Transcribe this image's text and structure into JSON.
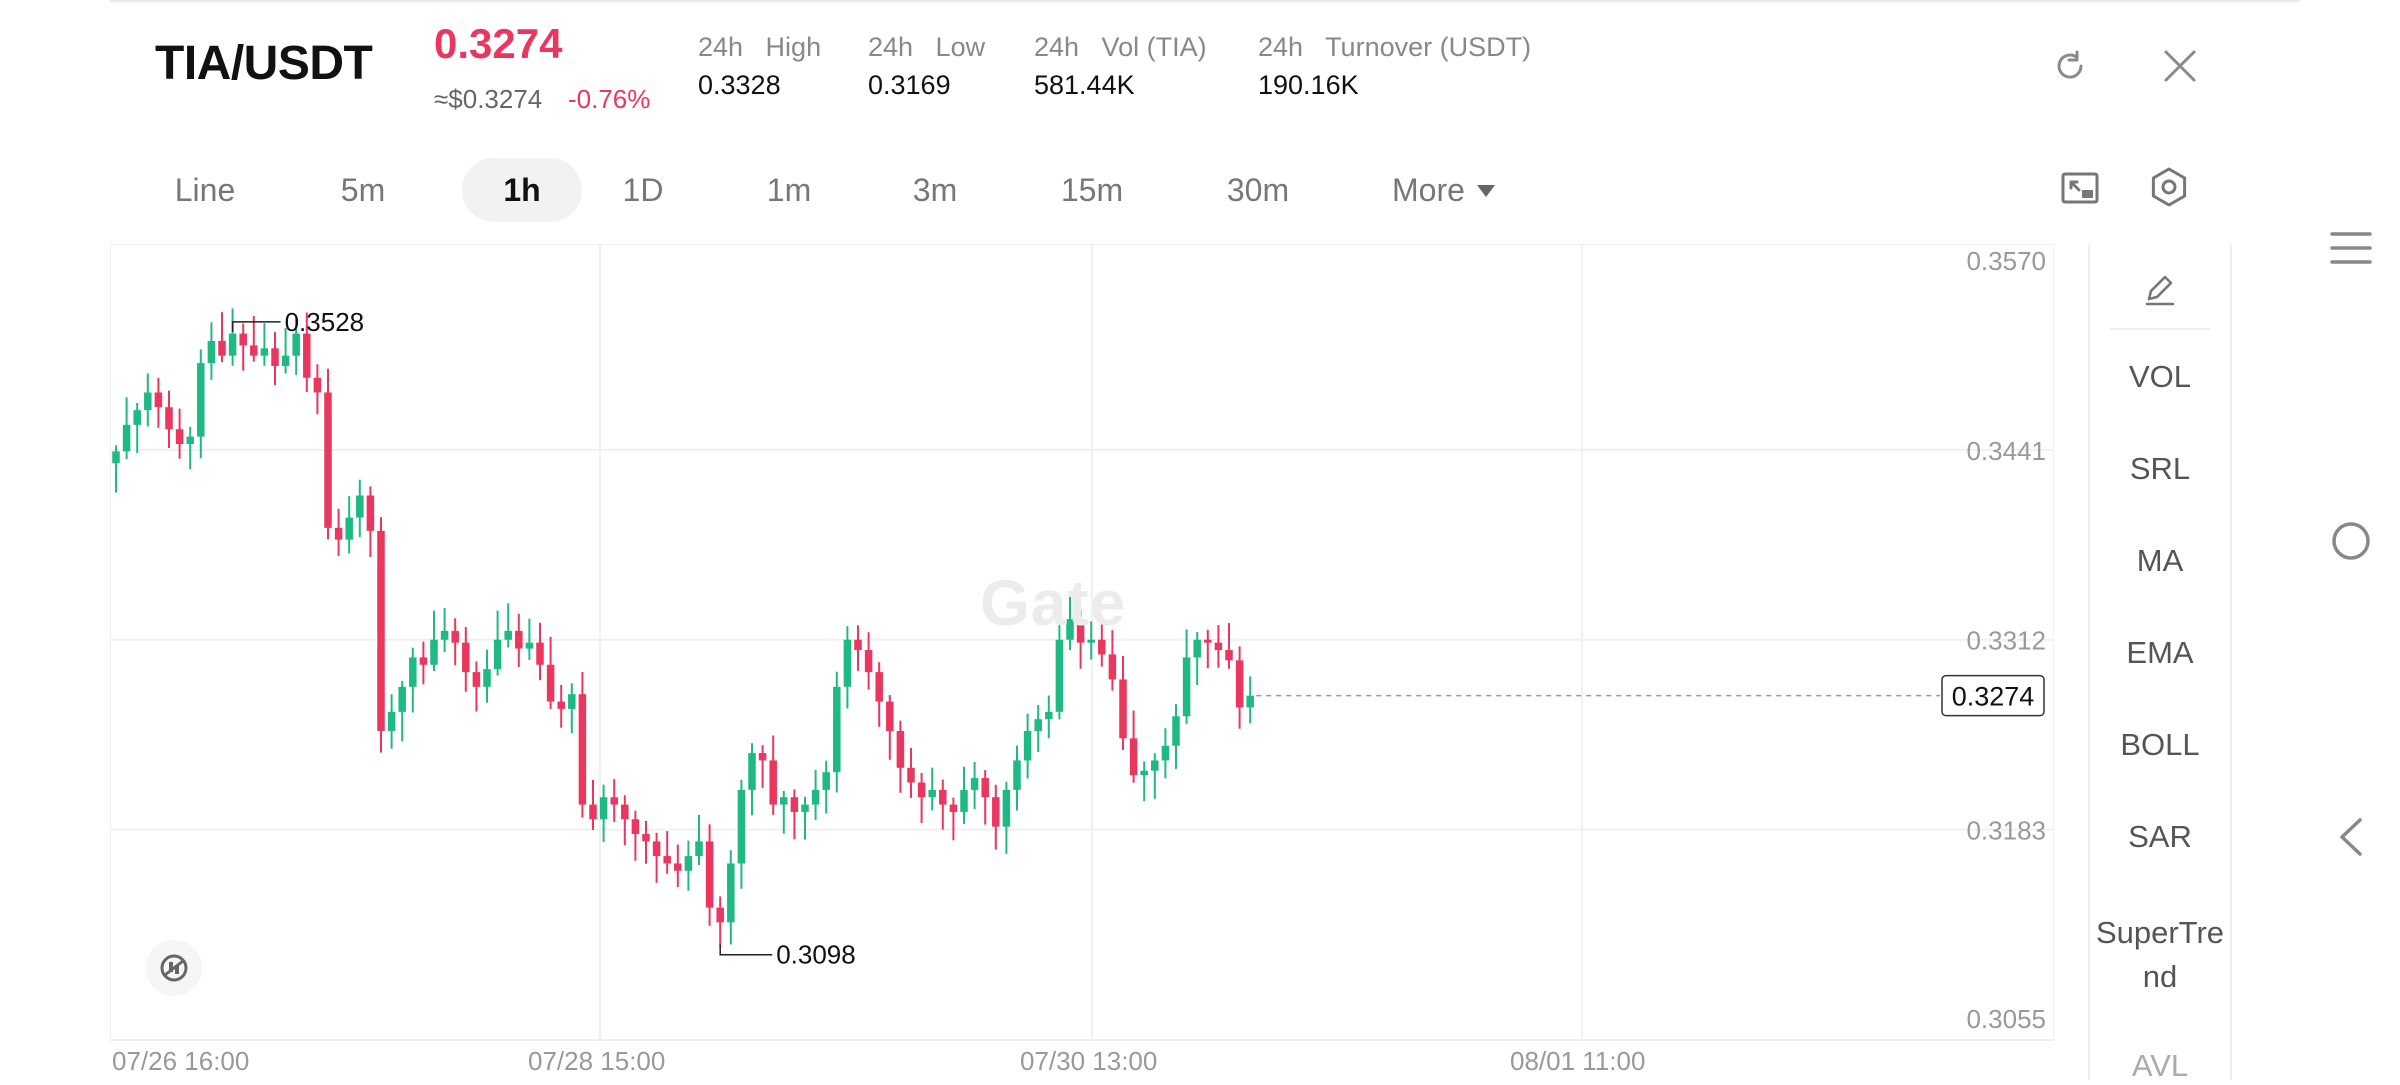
{
  "header": {
    "pair": "TIA/USDT",
    "last_price": "0.3274",
    "usd_approx": "≈$0.3274",
    "change_pct": "-0.76%",
    "stats": [
      {
        "label": "24h   High",
        "value": "0.3328"
      },
      {
        "label": "24h   Low",
        "value": "0.3169"
      },
      {
        "label": "24h   Vol (TIA)",
        "value": "581.44K"
      },
      {
        "label": "24h   Turnover (USDT)",
        "value": "190.16K"
      }
    ],
    "refresh_icon": "refresh-icon",
    "close_icon": "close-icon"
  },
  "intervals": {
    "tabs": [
      "Line",
      "5m",
      "1h",
      "1D",
      "1m",
      "3m",
      "15m",
      "30m"
    ],
    "active": "1h",
    "more_label": "More"
  },
  "toolbar": {
    "landscape_icon": "fullscreen-icon",
    "settings_icon": "settings-icon"
  },
  "indicators": {
    "draw_icon": "pencil-icon",
    "items": [
      "VOL",
      "SRL",
      "MA",
      "EMA",
      "BOLL",
      "SAR",
      "SuperTrend",
      "AVL"
    ]
  },
  "colors": {
    "up": "#1fba84",
    "down": "#e9375f",
    "grid": "#f0f0f0",
    "axis_text": "#999999"
  },
  "watermark": "Gate",
  "chart_data": {
    "type": "candlestick",
    "interval": "1h",
    "y_axis": {
      "ticks": [
        0.357,
        0.3441,
        0.3312,
        0.3183,
        0.3055
      ],
      "range": [
        0.3055,
        0.357
      ]
    },
    "x_axis": {
      "ticks": [
        "07/26 16:00",
        "07/28 15:00",
        "07/30 13:00",
        "08/01 11:00"
      ]
    },
    "high_label": "0.3528",
    "low_label": "0.3098",
    "current_price": "0.3274",
    "series": [
      {
        "close": 0.344
      },
      {
        "close": 0.3458
      },
      {
        "close": 0.3468
      },
      {
        "close": 0.348
      },
      {
        "close": 0.347
      },
      {
        "close": 0.3455
      },
      {
        "close": 0.3445
      },
      {
        "close": 0.345
      },
      {
        "close": 0.35
      },
      {
        "close": 0.3515
      },
      {
        "close": 0.3505
      },
      {
        "close": 0.352
      },
      {
        "close": 0.3512
      },
      {
        "close": 0.3505
      },
      {
        "close": 0.351
      },
      {
        "close": 0.3498
      },
      {
        "close": 0.3505
      },
      {
        "close": 0.352
      },
      {
        "close": 0.349
      },
      {
        "close": 0.348
      },
      {
        "close": 0.3388
      },
      {
        "close": 0.338
      },
      {
        "close": 0.3395
      },
      {
        "close": 0.341
      },
      {
        "close": 0.3386
      },
      {
        "close": 0.325
      },
      {
        "close": 0.3263
      },
      {
        "close": 0.328
      },
      {
        "close": 0.33
      },
      {
        "close": 0.3295
      },
      {
        "close": 0.3312
      },
      {
        "close": 0.3318
      },
      {
        "close": 0.331
      },
      {
        "close": 0.329
      },
      {
        "close": 0.328
      },
      {
        "close": 0.3292
      },
      {
        "close": 0.3312
      },
      {
        "close": 0.3318
      },
      {
        "close": 0.3306
      },
      {
        "close": 0.331
      },
      {
        "close": 0.3295
      },
      {
        "close": 0.327
      },
      {
        "close": 0.3265
      },
      {
        "close": 0.3275
      },
      {
        "close": 0.32
      },
      {
        "close": 0.319
      },
      {
        "close": 0.3205
      },
      {
        "close": 0.32
      },
      {
        "close": 0.319
      },
      {
        "close": 0.318
      },
      {
        "close": 0.3175
      },
      {
        "close": 0.3165
      },
      {
        "close": 0.316
      },
      {
        "close": 0.3155
      },
      {
        "close": 0.3165
      },
      {
        "close": 0.3175
      },
      {
        "close": 0.313
      },
      {
        "close": 0.312
      },
      {
        "close": 0.316
      },
      {
        "close": 0.321
      },
      {
        "close": 0.3235
      },
      {
        "close": 0.323
      },
      {
        "close": 0.32
      },
      {
        "close": 0.3205
      },
      {
        "close": 0.3195
      },
      {
        "close": 0.32
      },
      {
        "close": 0.321
      },
      {
        "close": 0.3222
      },
      {
        "close": 0.328
      },
      {
        "close": 0.3312
      },
      {
        "close": 0.3305
      },
      {
        "close": 0.329
      },
      {
        "close": 0.327
      },
      {
        "close": 0.325
      },
      {
        "close": 0.3225
      },
      {
        "close": 0.3215
      },
      {
        "close": 0.3205
      },
      {
        "close": 0.321
      },
      {
        "close": 0.32
      },
      {
        "close": 0.3195
      },
      {
        "close": 0.321
      },
      {
        "close": 0.3218
      },
      {
        "close": 0.3205
      },
      {
        "close": 0.3185
      },
      {
        "close": 0.321
      },
      {
        "close": 0.323
      },
      {
        "close": 0.325
      },
      {
        "close": 0.3258
      },
      {
        "close": 0.3263
      },
      {
        "close": 0.3312
      },
      {
        "close": 0.3326
      },
      {
        "close": 0.331
      },
      {
        "close": 0.3312
      },
      {
        "close": 0.3302
      },
      {
        "close": 0.3285
      },
      {
        "close": 0.3245
      },
      {
        "close": 0.322
      },
      {
        "close": 0.3223
      },
      {
        "close": 0.323
      },
      {
        "close": 0.324
      },
      {
        "close": 0.326
      },
      {
        "close": 0.33
      },
      {
        "close": 0.3312
      },
      {
        "close": 0.331
      },
      {
        "close": 0.3305
      },
      {
        "close": 0.3298
      },
      {
        "close": 0.3266
      },
      {
        "close": 0.3274
      }
    ]
  }
}
